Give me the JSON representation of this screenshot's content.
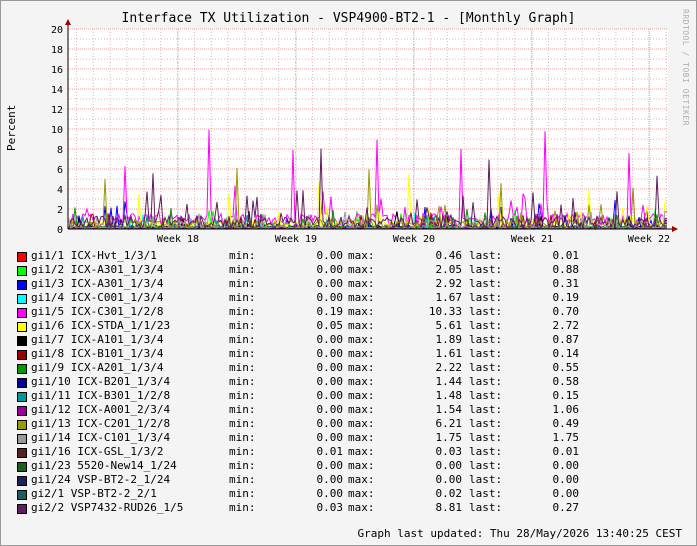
{
  "chart_data": {
    "type": "line",
    "title": "Interface TX Utilization - VSP4900-BT2-1 - [Monthly Graph]",
    "ylabel": "Percent",
    "xlabel": "",
    "ylim": [
      0,
      20
    ],
    "yticks": [
      0,
      2,
      4,
      6,
      8,
      10,
      12,
      14,
      16,
      18,
      20
    ],
    "xticks": [
      "Week 18",
      "Week 19",
      "Week 20",
      "Week 21",
      "Week 22"
    ],
    "grid": true,
    "series": [
      {
        "name": "gi1/1 ICX-Hvt_1/3/1",
        "color": "#ff0000",
        "min": "0.00",
        "max": "0.46",
        "last": "0.01"
      },
      {
        "name": "gi1/2 ICX-A301_1/3/4",
        "color": "#00ff00",
        "min": "0.00",
        "max": "2.05",
        "last": "0.88"
      },
      {
        "name": "gi1/3 ICX-A301_1/3/4",
        "color": "#0000ff",
        "min": "0.00",
        "max": "2.92",
        "last": "0.31"
      },
      {
        "name": "gi1/4 ICX-C001_1/3/4",
        "color": "#00ffff",
        "min": "0.00",
        "max": "1.67",
        "last": "0.19"
      },
      {
        "name": "gi1/5 ICX-C301_1/2/8",
        "color": "#ff00ff",
        "min": "0.19",
        "max": "10.33",
        "last": "0.70"
      },
      {
        "name": "gi1/6 ICX-STDA_1/1/23",
        "color": "#ffff00",
        "min": "0.05",
        "max": "5.61",
        "last": "2.72"
      },
      {
        "name": "gi1/7 ICX-A101_1/3/4",
        "color": "#000000",
        "min": "0.00",
        "max": "1.89",
        "last": "0.87"
      },
      {
        "name": "gi1/8 ICX-B101_1/3/4",
        "color": "#990000",
        "min": "0.00",
        "max": "1.61",
        "last": "0.14"
      },
      {
        "name": "gi1/9 ICX-A201_1/3/4",
        "color": "#009900",
        "min": "0.00",
        "max": "2.22",
        "last": "0.55"
      },
      {
        "name": "gi1/10 ICX-B201_1/3/4",
        "color": "#000099",
        "min": "0.00",
        "max": "1.44",
        "last": "0.58"
      },
      {
        "name": "gi1/11 ICX-B301_1/2/8",
        "color": "#009999",
        "min": "0.00",
        "max": "1.48",
        "last": "0.15"
      },
      {
        "name": "gi1/12 ICX-A001_2/3/4",
        "color": "#990099",
        "min": "0.00",
        "max": "1.54",
        "last": "1.06"
      },
      {
        "name": "gi1/13 ICX-C201_1/2/8",
        "color": "#999900",
        "min": "0.00",
        "max": "6.21",
        "last": "0.49"
      },
      {
        "name": "gi1/14 ICX-C101_1/3/4",
        "color": "#999999",
        "min": "0.00",
        "max": "1.75",
        "last": "1.75"
      },
      {
        "name": "gi1/16 ICX-GSL_1/3/2",
        "color": "#5c1f1f",
        "min": "0.01",
        "max": "0.03",
        "last": "0.01"
      },
      {
        "name": "gi1/23 5520-New14_1/24",
        "color": "#1f5c1f",
        "min": "0.00",
        "max": "0.00",
        "last": "0.00"
      },
      {
        "name": "gi1/24 VSP-BT2-2_1/24",
        "color": "#1f1f5c",
        "min": "0.00",
        "max": "0.00",
        "last": "0.00"
      },
      {
        "name": "gi2/1 VSP-BT2-2_2/1",
        "color": "#1f5c5c",
        "min": "0.00",
        "max": "0.02",
        "last": "0.00"
      },
      {
        "name": "gi2/2 VSP7432-RUD26_1/5",
        "color": "#5c1f5c",
        "min": "0.03",
        "max": "8.81",
        "last": "0.27"
      }
    ]
  },
  "legend_labels": {
    "min": "min:",
    "max": "max:",
    "last": "last:"
  },
  "watermark": "RRDTOOL / TOBI OETIKER",
  "footer": {
    "updated": "Graph last updated: Thu 28/May/2026 13:40:25 CEST"
  }
}
